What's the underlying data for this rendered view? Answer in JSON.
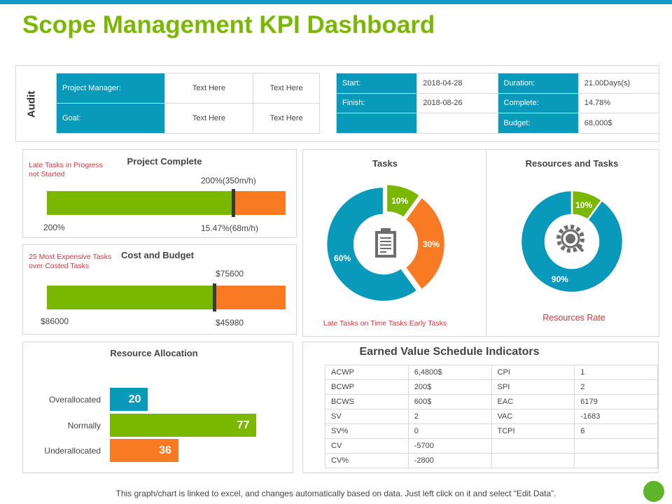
{
  "title": "Scope Management KPI Dashboard",
  "colors": {
    "teal": "#0899bb",
    "green": "#7ab800",
    "orange": "#f87a23",
    "red": "#d9363e"
  },
  "audit": {
    "label": "Audit",
    "rows": [
      [
        "Project Manager:",
        "Text Here",
        "Text Here"
      ],
      [
        "Goal:",
        "Text Here",
        "Text Here"
      ]
    ]
  },
  "schedule": {
    "rows": [
      [
        "Start:",
        "2018-04-28",
        "Duration:",
        "21.00Days(s)"
      ],
      [
        "Finish:",
        "2018-08-26",
        "Complete:",
        "14.78%"
      ],
      [
        "",
        "",
        "Budget:",
        "68,000$"
      ]
    ]
  },
  "project_complete": {
    "title": "Project Complete",
    "note": "Late Tasks in Progress not Started",
    "top_label": "200%(350m/h)",
    "left_label": "200%",
    "bottom_label": "15.47%(68m/h)",
    "progress_pct": 78
  },
  "cost_budget": {
    "title": "Cost and Budget",
    "note": "25 Most Expensive Tasks over Costed Tasks",
    "top_label": "$75600",
    "left_label": "$86000",
    "bottom_label": "$45980",
    "progress_pct": 70
  },
  "tasks": {
    "title": "Tasks",
    "icon": "clipboard-icon",
    "caption": "Late Tasks on Time  Tasks Early Tasks",
    "slices": [
      {
        "label": "10%",
        "value": 10,
        "color": "#7ab800"
      },
      {
        "label": "30%",
        "value": 30,
        "color": "#f87a23"
      },
      {
        "label": "60%",
        "value": 60,
        "color": "#0899bb"
      }
    ]
  },
  "resources": {
    "title": "Resources  and Tasks",
    "icon": "gear-search-icon",
    "caption": "Resources  Rate",
    "slices": [
      {
        "label": "10%",
        "value": 10,
        "color": "#7ab800"
      },
      {
        "label": "90%",
        "value": 90,
        "color": "#0899bb"
      }
    ]
  },
  "resource_allocation": {
    "title": "Resource Allocation",
    "items": [
      {
        "label": "Overallocated",
        "value": 20,
        "color": "#0899bb"
      },
      {
        "label": "Normally",
        "value": 77,
        "color": "#7ab800"
      },
      {
        "label": "Underallocated",
        "value": 36,
        "color": "#f87a23"
      }
    ]
  },
  "earned_value": {
    "title": "Earned Value Schedule Indicators",
    "rows": [
      [
        "ACWP",
        "6,4800$",
        "CPI",
        "1"
      ],
      [
        "BCWP",
        "200$",
        "SPI",
        "2"
      ],
      [
        "BCWS",
        "600$",
        "EAC",
        "6179"
      ],
      [
        "SV",
        "2",
        "VAC",
        "-1683"
      ],
      [
        "SV%",
        "0",
        "TCPI",
        "6"
      ],
      [
        "CV",
        "-5700",
        "",
        ""
      ],
      [
        "CV%",
        "-2800",
        "",
        ""
      ]
    ]
  },
  "footer": "This graph/chart is linked to excel, and changes automatically based on data. Just left click on it and select “Edit Data”."
}
